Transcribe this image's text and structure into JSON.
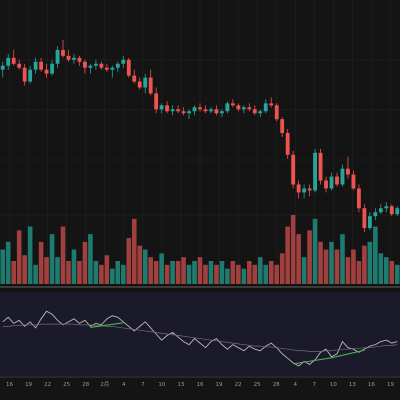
{
  "colors": {
    "background": "#141414",
    "grid": "#262626",
    "up": "#26a69a",
    "down": "#ef5350",
    "up_volume": "#1f7a70",
    "down_volume": "#a0403f",
    "oscillator_panel": "#1b1a2b",
    "oscillator_line": "#b8b8b8",
    "oscillator_signal": "#6f6f6f",
    "bull_divergence": "#4caf50",
    "separator": "#3a3a3a"
  },
  "chart_data": [
    {
      "type": "candlestick",
      "title": "",
      "xlabel": "",
      "ylabel": "",
      "grid": true,
      "x_tick_labels": [
        "16",
        "19",
        "22",
        "25",
        "28",
        "2月",
        "4",
        "7",
        "10",
        "13",
        "16",
        "19",
        "22",
        "25",
        "28",
        "4",
        "7",
        "10",
        "13",
        "16",
        "19"
      ],
      "ylim": [
        0,
        100
      ],
      "ohlc": [
        [
          70,
          74,
          66,
          72
        ],
        [
          72,
          78,
          70,
          76
        ],
        [
          76,
          80,
          72,
          73
        ],
        [
          73,
          75,
          70,
          71
        ],
        [
          71,
          73,
          62,
          64
        ],
        [
          64,
          72,
          63,
          70
        ],
        [
          70,
          76,
          68,
          74
        ],
        [
          74,
          76,
          69,
          70
        ],
        [
          70,
          73,
          66,
          68
        ],
        [
          68,
          75,
          67,
          73
        ],
        [
          73,
          82,
          71,
          80
        ],
        [
          80,
          85,
          76,
          77
        ],
        [
          77,
          80,
          74,
          75
        ],
        [
          75,
          78,
          73,
          76
        ],
        [
          76,
          77,
          72,
          74
        ],
        [
          74,
          75,
          68,
          71
        ],
        [
          71,
          73,
          68,
          72
        ],
        [
          72,
          75,
          70,
          73
        ],
        [
          73,
          74,
          70,
          71
        ],
        [
          71,
          73,
          69,
          70
        ],
        [
          70,
          72,
          66,
          71
        ],
        [
          71,
          74,
          69,
          73
        ],
        [
          73,
          77,
          71,
          75
        ],
        [
          75,
          76,
          66,
          67
        ],
        [
          67,
          70,
          63,
          64
        ],
        [
          64,
          66,
          60,
          61
        ],
        [
          61,
          68,
          58,
          66
        ],
        [
          66,
          70,
          57,
          58
        ],
        [
          58,
          61,
          48,
          50
        ],
        [
          50,
          53,
          48,
          52
        ],
        [
          52,
          54,
          48,
          49
        ],
        [
          49,
          52,
          47,
          50
        ],
        [
          50,
          52,
          48,
          49
        ],
        [
          49,
          51,
          47,
          48
        ],
        [
          48,
          50,
          45,
          49
        ],
        [
          49,
          52,
          47,
          51
        ],
        [
          51,
          53,
          49,
          50
        ],
        [
          50,
          52,
          48,
          49
        ],
        [
          49,
          51,
          48,
          50
        ],
        [
          50,
          52,
          47,
          48
        ],
        [
          48,
          50,
          46,
          49
        ],
        [
          49,
          54,
          48,
          53
        ],
        [
          53,
          55,
          51,
          52
        ],
        [
          52,
          53,
          49,
          50
        ],
        [
          50,
          52,
          48,
          51
        ],
        [
          51,
          53,
          49,
          50
        ],
        [
          50,
          52,
          47,
          48
        ],
        [
          48,
          50,
          46,
          49
        ],
        [
          49,
          55,
          48,
          53
        ],
        [
          53,
          56,
          51,
          52
        ],
        [
          52,
          53,
          44,
          45
        ],
        [
          45,
          46,
          36,
          38
        ],
        [
          38,
          40,
          25,
          27
        ],
        [
          27,
          29,
          10,
          12
        ],
        [
          12,
          14,
          5,
          8
        ],
        [
          8,
          12,
          5,
          10
        ],
        [
          10,
          12,
          6,
          9
        ],
        [
          9,
          30,
          8,
          28
        ],
        [
          28,
          30,
          12,
          14
        ],
        [
          14,
          16,
          8,
          10
        ],
        [
          10,
          18,
          9,
          16
        ],
        [
          16,
          18,
          11,
          12
        ],
        [
          12,
          22,
          11,
          20
        ],
        [
          20,
          26,
          15,
          17
        ],
        [
          17,
          19,
          9,
          10
        ],
        [
          10,
          12,
          -2,
          0
        ],
        [
          0,
          2,
          -12,
          -10
        ],
        [
          -10,
          -2,
          -11,
          -4
        ],
        [
          -4,
          0,
          -6,
          -2
        ],
        [
          -2,
          2,
          -3,
          0
        ],
        [
          0,
          3,
          -2,
          1
        ],
        [
          1,
          2,
          -4,
          -3
        ],
        [
          -3,
          1,
          -4,
          0
        ]
      ],
      "volume": [
        18,
        22,
        12,
        28,
        15,
        30,
        10,
        22,
        14,
        26,
        14,
        30,
        12,
        18,
        12,
        22,
        26,
        12,
        10,
        15,
        8,
        12,
        10,
        24,
        34,
        20,
        18,
        14,
        12,
        16,
        10,
        12,
        12,
        14,
        10,
        12,
        14,
        10,
        12,
        10,
        12,
        8,
        12,
        10,
        8,
        12,
        10,
        14,
        10,
        12,
        10,
        16,
        30,
        36,
        26,
        14,
        28,
        34,
        22,
        18,
        22,
        18,
        26,
        14,
        18,
        12,
        20,
        22,
        30,
        16,
        14,
        12,
        10
      ]
    },
    {
      "type": "line",
      "title": "",
      "xlabel": "",
      "ylabel": "",
      "ylim": [
        0,
        100
      ],
      "series": [
        {
          "values": [
            66,
            72,
            64,
            68,
            60,
            66,
            58,
            70,
            80,
            76,
            68,
            62,
            66,
            70,
            64,
            68,
            60,
            64,
            62,
            70,
            74,
            72,
            66,
            60,
            54,
            60,
            66,
            58,
            50,
            42,
            48,
            52,
            46,
            40,
            36,
            44,
            38,
            32,
            40,
            44,
            36,
            30,
            36,
            32,
            28,
            34,
            30,
            28,
            34,
            38,
            32,
            24,
            18,
            12,
            8,
            14,
            10,
            16,
            26,
            30,
            20,
            24,
            40,
            32,
            30,
            26,
            30,
            34,
            36,
            40,
            42,
            38,
            40
          ]
        },
        {
          "values": [
            60,
            60,
            61,
            61,
            62,
            62,
            62,
            63,
            63,
            63,
            63,
            63,
            63,
            63,
            62,
            62,
            62,
            61,
            61,
            60,
            60,
            59,
            58,
            57,
            56,
            55,
            54,
            53,
            52,
            51,
            50,
            49,
            48,
            47,
            46,
            45,
            44,
            43,
            42,
            41,
            40,
            39,
            38,
            37,
            36,
            35,
            34,
            34,
            33,
            33,
            32,
            31,
            30,
            29,
            28,
            28,
            27,
            27,
            27,
            28,
            28,
            29,
            30,
            30,
            31,
            31,
            32,
            32,
            33,
            34,
            35,
            35,
            36
          ]
        }
      ],
      "annotations": [
        {
          "type": "bullish-divergence",
          "from_index": 16,
          "to_index": 22
        },
        {
          "type": "bullish-divergence",
          "from_index": 53,
          "to_index": 60
        },
        {
          "type": "bullish-divergence",
          "from_index": 60,
          "to_index": 66
        }
      ]
    }
  ]
}
